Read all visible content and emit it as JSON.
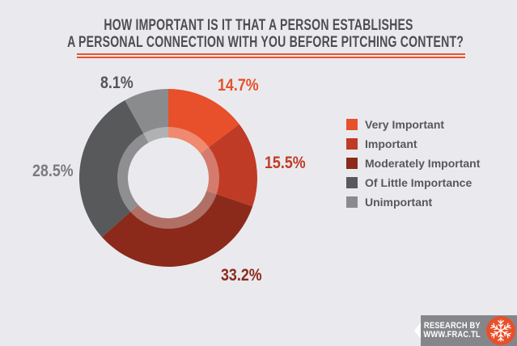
{
  "page": {
    "background": "#eaeaee"
  },
  "title": {
    "line1": "HOW IMPORTANT IS IT THAT A PERSON ESTABLISHES",
    "line2": "A PERSONAL CONNECTION WITH YOU BEFORE PITCHING CONTENT?",
    "color": "#4d4e50",
    "underline_color": "#e8542e"
  },
  "chart_data": {
    "type": "pie",
    "subtype": "donut",
    "title": "How important is it that a person establishes a personal connection with you before pitching content?",
    "start_angle_deg": 0,
    "direction": "clockwise",
    "inner_radius_ratio": 0.45,
    "legend_position": "right",
    "slices": [
      {
        "label": "Very Important",
        "value": 14.7,
        "display": "14.7%",
        "color": "#e7502b",
        "label_color": "#e7502b"
      },
      {
        "label": "Important",
        "value": 15.5,
        "display": "15.5%",
        "color": "#c03b26",
        "label_color": "#c03b26"
      },
      {
        "label": "Moderately Important",
        "value": 33.2,
        "display": "33.2%",
        "color": "#8b2a1b",
        "label_color": "#8b2a1b"
      },
      {
        "label": "Of Little Importance",
        "value": 28.5,
        "display": "28.5%",
        "color": "#58595b",
        "label_color": "#7b7c7e"
      },
      {
        "label": "Unimportant",
        "value": 8.1,
        "display": "8.1%",
        "color": "#8a8b8d",
        "label_color": "#545559"
      }
    ]
  },
  "footer": {
    "line1": "RESEARCH BY",
    "line2": "WWW.FRAC.TL",
    "background": "#85868a",
    "logo_color": "#e8502a",
    "logo": "snowflake"
  }
}
